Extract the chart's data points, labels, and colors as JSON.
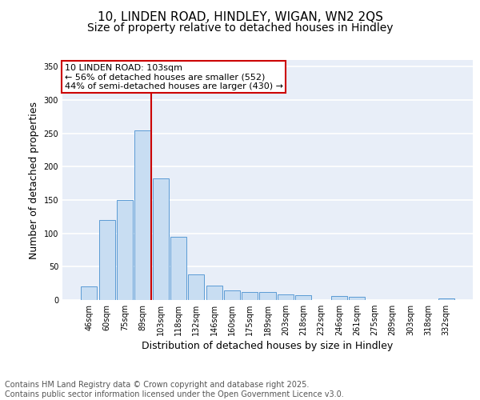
{
  "title1": "10, LINDEN ROAD, HINDLEY, WIGAN, WN2 2QS",
  "title2": "Size of property relative to detached houses in Hindley",
  "xlabel": "Distribution of detached houses by size in Hindley",
  "ylabel": "Number of detached properties",
  "categories": [
    "46sqm",
    "60sqm",
    "75sqm",
    "89sqm",
    "103sqm",
    "118sqm",
    "132sqm",
    "146sqm",
    "160sqm",
    "175sqm",
    "189sqm",
    "203sqm",
    "218sqm",
    "232sqm",
    "246sqm",
    "261sqm",
    "275sqm",
    "289sqm",
    "303sqm",
    "318sqm",
    "332sqm"
  ],
  "values": [
    20,
    120,
    150,
    255,
    183,
    95,
    38,
    22,
    14,
    12,
    12,
    8,
    7,
    0,
    6,
    5,
    0,
    0,
    0,
    0,
    2
  ],
  "bar_color": "#c8ddf2",
  "bar_edge_color": "#5b9bd5",
  "vline_color": "#cc0000",
  "vline_index": 3.5,
  "annotation_line1": "10 LINDEN ROAD: 103sqm",
  "annotation_line2": "← 56% of detached houses are smaller (552)",
  "annotation_line3": "44% of semi-detached houses are larger (430) →",
  "annotation_box_edgecolor": "#cc0000",
  "ylim": [
    0,
    360
  ],
  "yticks": [
    0,
    50,
    100,
    150,
    200,
    250,
    300,
    350
  ],
  "footer": "Contains HM Land Registry data © Crown copyright and database right 2025.\nContains public sector information licensed under the Open Government Licence v3.0.",
  "plot_bg_color": "#e8eef8",
  "grid_color": "#ffffff",
  "title_fontsize": 11,
  "subtitle_fontsize": 10,
  "axis_label_fontsize": 9,
  "tick_fontsize": 7,
  "footer_fontsize": 7,
  "ann_fontsize": 8
}
